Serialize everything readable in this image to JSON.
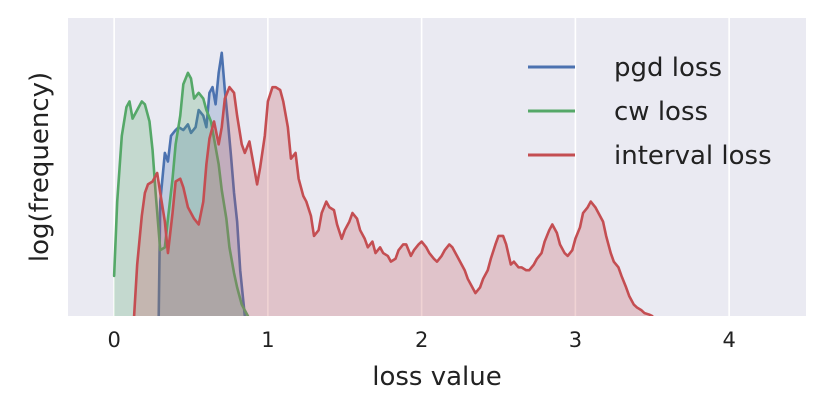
{
  "chart_data": {
    "type": "area",
    "title": "",
    "xlabel": "loss value",
    "ylabel": "log(frequency)",
    "xlim": [
      -0.3,
      4.5
    ],
    "ylim": [
      0,
      1
    ],
    "xticks": [
      0,
      1,
      2,
      3,
      4
    ],
    "yticks": [],
    "grid": true,
    "legend": "top-right",
    "series": [
      {
        "name": "pgd loss",
        "color": "#4c72b0",
        "x": [
          0.29,
          0.3,
          0.33,
          0.35,
          0.37,
          0.4,
          0.42,
          0.45,
          0.48,
          0.5,
          0.53,
          0.55,
          0.58,
          0.6,
          0.62,
          0.64,
          0.66,
          0.68,
          0.7,
          0.72,
          0.74,
          0.76,
          0.78,
          0.8,
          0.82,
          0.85
        ],
        "y": [
          0.0,
          0.4,
          0.57,
          0.54,
          0.63,
          0.65,
          0.66,
          0.65,
          0.67,
          0.64,
          0.66,
          0.72,
          0.7,
          0.66,
          0.78,
          0.8,
          0.74,
          0.85,
          0.92,
          0.79,
          0.68,
          0.56,
          0.43,
          0.33,
          0.16,
          0.0
        ]
      },
      {
        "name": "cw loss",
        "color": "#55a868",
        "x": [
          0.0,
          0.02,
          0.05,
          0.08,
          0.1,
          0.12,
          0.15,
          0.18,
          0.2,
          0.23,
          0.25,
          0.27,
          0.3,
          0.33,
          0.35,
          0.38,
          0.4,
          0.43,
          0.45,
          0.48,
          0.5,
          0.52,
          0.55,
          0.58,
          0.6,
          0.63,
          0.65,
          0.68,
          0.7,
          0.73,
          0.75,
          0.78,
          0.8,
          0.83,
          0.87
        ],
        "y": [
          0.14,
          0.4,
          0.63,
          0.73,
          0.75,
          0.69,
          0.72,
          0.75,
          0.74,
          0.68,
          0.58,
          0.43,
          0.23,
          0.24,
          0.34,
          0.48,
          0.6,
          0.7,
          0.81,
          0.85,
          0.83,
          0.76,
          0.78,
          0.76,
          0.72,
          0.68,
          0.62,
          0.53,
          0.44,
          0.34,
          0.24,
          0.15,
          0.1,
          0.04,
          0.0
        ]
      },
      {
        "name": "interval loss",
        "color": "#c44e52",
        "x": [
          0.13,
          0.15,
          0.18,
          0.2,
          0.22,
          0.25,
          0.28,
          0.3,
          0.33,
          0.35,
          0.38,
          0.4,
          0.43,
          0.45,
          0.48,
          0.5,
          0.52,
          0.55,
          0.58,
          0.6,
          0.62,
          0.65,
          0.68,
          0.7,
          0.72,
          0.75,
          0.78,
          0.8,
          0.83,
          0.85,
          0.88,
          0.9,
          0.93,
          0.95,
          0.98,
          1.0,
          1.03,
          1.05,
          1.08,
          1.1,
          1.13,
          1.15,
          1.18,
          1.2,
          1.23,
          1.25,
          1.28,
          1.3,
          1.33,
          1.35,
          1.38,
          1.4,
          1.43,
          1.45,
          1.48,
          1.5,
          1.53,
          1.55,
          1.58,
          1.6,
          1.63,
          1.65,
          1.68,
          1.7,
          1.73,
          1.75,
          1.78,
          1.8,
          1.83,
          1.85,
          1.88,
          1.9,
          1.93,
          1.95,
          1.98,
          2.0,
          2.03,
          2.05,
          2.08,
          2.1,
          2.13,
          2.15,
          2.18,
          2.2,
          2.23,
          2.25,
          2.28,
          2.3,
          2.33,
          2.35,
          2.38,
          2.4,
          2.43,
          2.45,
          2.48,
          2.5,
          2.53,
          2.55,
          2.58,
          2.6,
          2.63,
          2.65,
          2.68,
          2.7,
          2.73,
          2.75,
          2.78,
          2.8,
          2.83,
          2.85,
          2.88,
          2.9,
          2.93,
          2.95,
          2.98,
          3.0,
          3.03,
          3.05,
          3.08,
          3.1,
          3.13,
          3.15,
          3.18,
          3.2,
          3.23,
          3.25,
          3.28,
          3.3,
          3.33,
          3.35,
          3.38,
          3.4,
          3.43,
          3.45,
          3.48,
          3.5
        ],
        "y": [
          0.0,
          0.18,
          0.35,
          0.43,
          0.46,
          0.47,
          0.5,
          0.43,
          0.33,
          0.22,
          0.36,
          0.47,
          0.48,
          0.45,
          0.38,
          0.36,
          0.34,
          0.32,
          0.4,
          0.53,
          0.62,
          0.68,
          0.6,
          0.66,
          0.76,
          0.8,
          0.78,
          0.7,
          0.6,
          0.57,
          0.61,
          0.55,
          0.46,
          0.52,
          0.63,
          0.75,
          0.8,
          0.8,
          0.79,
          0.75,
          0.66,
          0.55,
          0.57,
          0.48,
          0.42,
          0.4,
          0.35,
          0.28,
          0.3,
          0.36,
          0.4,
          0.38,
          0.37,
          0.32,
          0.27,
          0.3,
          0.33,
          0.36,
          0.34,
          0.3,
          0.27,
          0.24,
          0.26,
          0.22,
          0.24,
          0.22,
          0.21,
          0.19,
          0.2,
          0.23,
          0.25,
          0.25,
          0.21,
          0.23,
          0.25,
          0.26,
          0.24,
          0.22,
          0.2,
          0.19,
          0.21,
          0.23,
          0.25,
          0.24,
          0.21,
          0.19,
          0.16,
          0.13,
          0.1,
          0.08,
          0.1,
          0.13,
          0.16,
          0.2,
          0.25,
          0.28,
          0.28,
          0.25,
          0.18,
          0.19,
          0.17,
          0.17,
          0.16,
          0.16,
          0.18,
          0.2,
          0.22,
          0.26,
          0.3,
          0.32,
          0.29,
          0.25,
          0.22,
          0.21,
          0.23,
          0.27,
          0.31,
          0.36,
          0.38,
          0.4,
          0.38,
          0.36,
          0.33,
          0.28,
          0.22,
          0.19,
          0.17,
          0.14,
          0.1,
          0.07,
          0.04,
          0.03,
          0.02,
          0.01,
          0.005,
          0.0
        ]
      }
    ]
  }
}
